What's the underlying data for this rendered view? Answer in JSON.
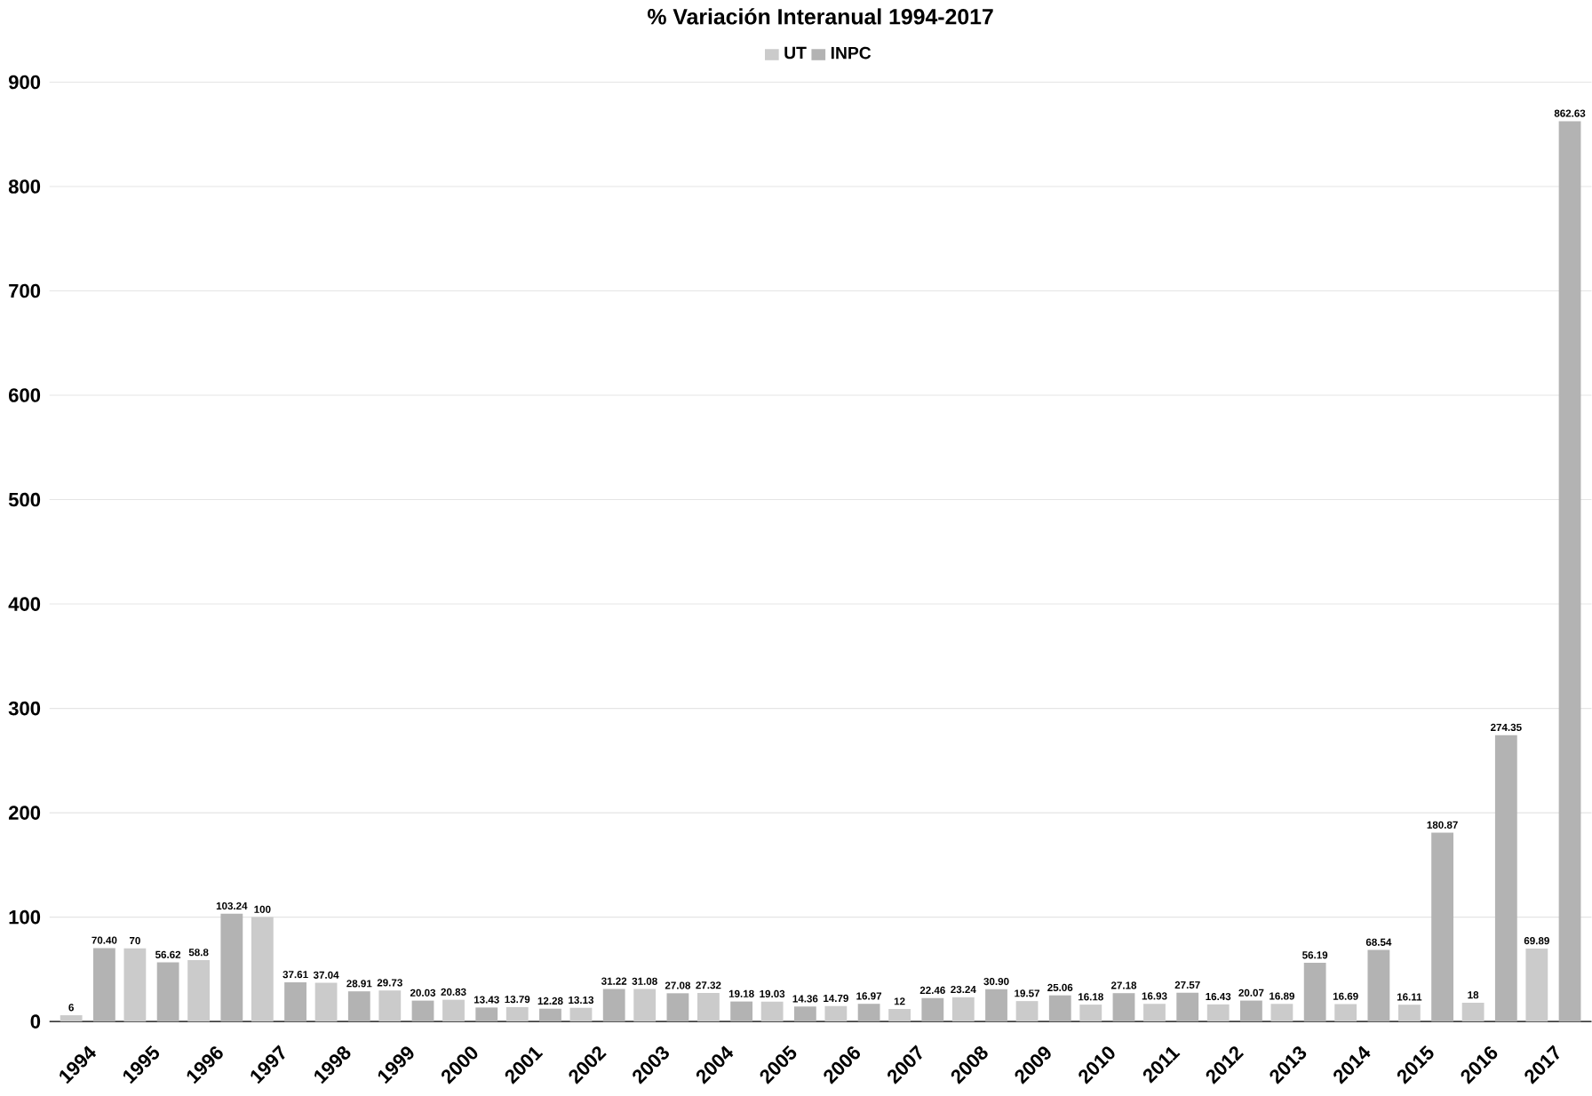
{
  "chart_data": {
    "type": "bar",
    "title": "% Variación Interanual 1994-2017",
    "categories": [
      "1994",
      "1995",
      "1996",
      "1997",
      "1998",
      "1999",
      "2000",
      "2001",
      "2002",
      "2003",
      "2004",
      "2005",
      "2006",
      "2007",
      "2008",
      "2009",
      "2010",
      "2011",
      "2012",
      "2013",
      "2014",
      "2015",
      "2016",
      "2017"
    ],
    "series": [
      {
        "name": "UT",
        "color": "#cbcbcb",
        "values": [
          6,
          70,
          58.8,
          100,
          37.04,
          29.73,
          20.83,
          13.79,
          13.13,
          31.08,
          27.32,
          19.03,
          14.79,
          12,
          23.24,
          19.57,
          16.18,
          16.93,
          16.43,
          16.89,
          16.69,
          16.11,
          18,
          69.89
        ],
        "value_labels": [
          "6",
          "70",
          "58.8",
          "100",
          "37.04",
          "29.73",
          "20.83",
          "13.79",
          "13.13",
          "31.08",
          "27.32",
          "19.03",
          "14.79",
          "12",
          "23.24",
          "19.57",
          "16.18",
          "16.93",
          "16.43",
          "16.89",
          "16.69",
          "16.11",
          "18",
          "69.89"
        ]
      },
      {
        "name": "INPC",
        "color": "#b3b3b3",
        "values": [
          70.4,
          56.62,
          103.24,
          37.61,
          28.91,
          20.03,
          13.43,
          12.28,
          31.22,
          27.08,
          19.18,
          14.36,
          16.97,
          22.46,
          30.9,
          25.06,
          27.18,
          27.57,
          20.07,
          56.19,
          68.54,
          180.87,
          274.35,
          862.63
        ],
        "value_labels": [
          "70.40",
          "56.62",
          "103.24",
          "37.61",
          "28.91",
          "20.03",
          "13.43",
          "12.28",
          "31.22",
          "27.08",
          "19.18",
          "14.36",
          "16.97",
          "22.46",
          "30.90",
          "25.06",
          "27.18",
          "27.57",
          "20.07",
          "56.19",
          "68.54",
          "180.87",
          "274.35",
          "862.63"
        ]
      }
    ],
    "ylim": [
      0,
      900
    ],
    "yticks": [
      0,
      100,
      200,
      300,
      400,
      500,
      600,
      700,
      800,
      900
    ],
    "grid": "y",
    "legend": "top"
  }
}
